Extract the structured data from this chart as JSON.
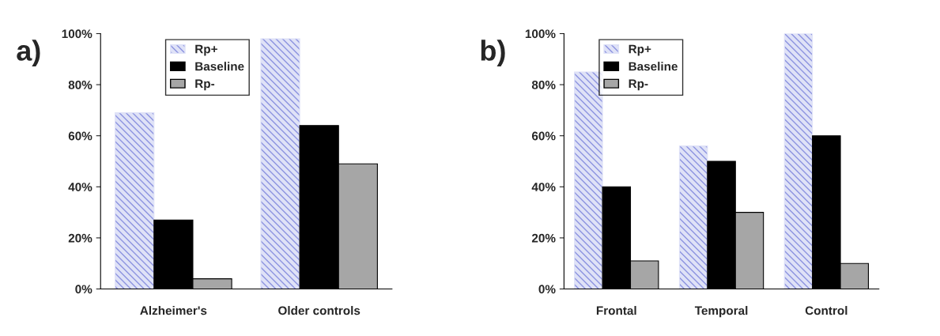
{
  "chart_data": [
    {
      "type": "bar",
      "title": "a)",
      "categories": [
        "Alzheimer's",
        "Older controls"
      ],
      "series": [
        {
          "name": "Rp+",
          "color": "#dfe2f7",
          "values": [
            69,
            98
          ]
        },
        {
          "name": "Baseline",
          "color": "#000000",
          "values": [
            27,
            64
          ]
        },
        {
          "name": "Rp-",
          "color": "#a6a6a6",
          "values": [
            4,
            49
          ]
        }
      ],
      "ylim": [
        0,
        100
      ],
      "yticks": [
        {
          "value": 0,
          "label": "0%"
        },
        {
          "value": 20,
          "label": "20%"
        },
        {
          "value": 40,
          "label": "40%"
        },
        {
          "value": 60,
          "label": "60%"
        },
        {
          "value": 80,
          "label": "80%"
        },
        {
          "value": 100,
          "label": "100%"
        }
      ],
      "grid": false,
      "legend": "top"
    },
    {
      "type": "bar",
      "title": "b)",
      "categories": [
        "Frontal",
        "Temporal",
        "Control"
      ],
      "series": [
        {
          "name": "Rp+",
          "color": "#dfe2f7",
          "values": [
            85,
            56,
            100
          ]
        },
        {
          "name": "Baseline",
          "color": "#000000",
          "values": [
            40,
            50,
            60
          ]
        },
        {
          "name": "Rp-",
          "color": "#a6a6a6",
          "values": [
            11,
            30,
            10
          ]
        }
      ],
      "ylim": [
        0,
        100
      ],
      "yticks": [
        {
          "value": 0,
          "label": "0%"
        },
        {
          "value": 20,
          "label": "20%"
        },
        {
          "value": 40,
          "label": "40%"
        },
        {
          "value": 60,
          "label": "60%"
        },
        {
          "value": 80,
          "label": "80%"
        },
        {
          "value": 100,
          "label": "100%"
        }
      ],
      "grid": false,
      "legend": "top"
    }
  ]
}
